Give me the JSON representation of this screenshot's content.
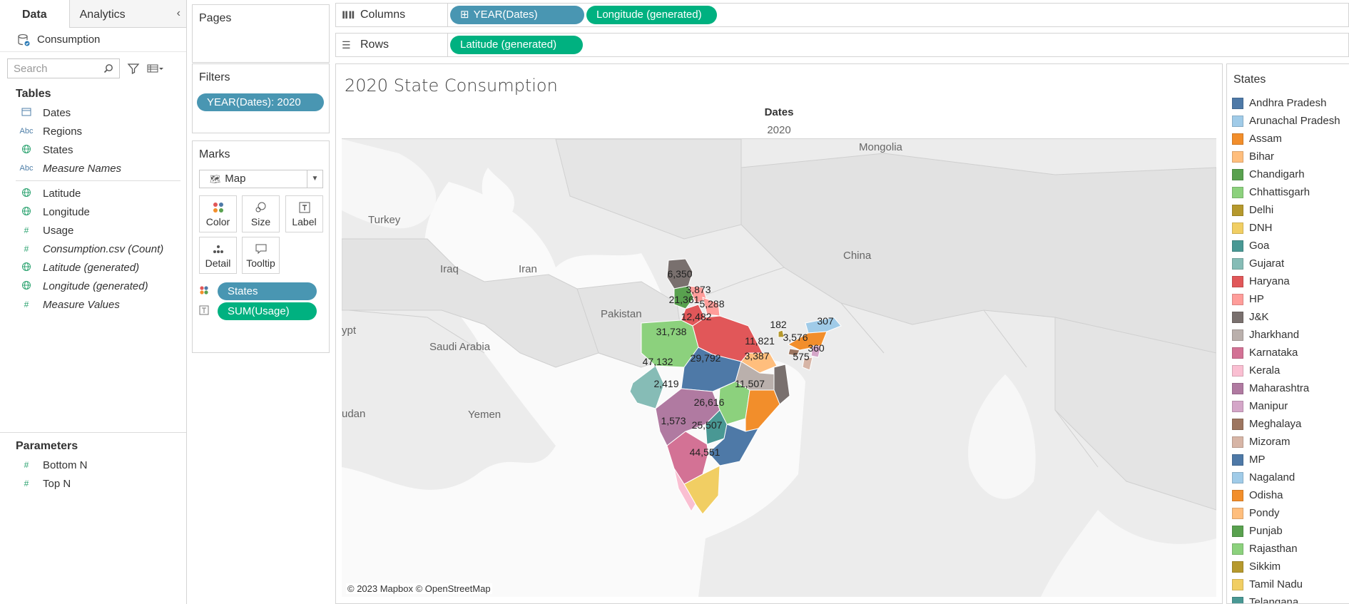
{
  "data_pane": {
    "tabs": [
      "Data",
      "Analytics"
    ],
    "datasource": "Consumption",
    "search_placeholder": "Search",
    "tables_title": "Tables",
    "fields": [
      {
        "label": "Dates",
        "type": "date",
        "italic": false
      },
      {
        "label": "Regions",
        "type": "abc",
        "italic": false
      },
      {
        "label": "States",
        "type": "geo",
        "italic": false
      },
      {
        "label": "Measure Names",
        "type": "abc",
        "italic": true
      },
      {
        "label": "Latitude",
        "type": "geo",
        "italic": false
      },
      {
        "label": "Longitude",
        "type": "geo",
        "italic": false
      },
      {
        "label": "Usage",
        "type": "num",
        "italic": false
      },
      {
        "label": "Consumption.csv (Count)",
        "type": "num",
        "italic": true
      },
      {
        "label": "Latitude (generated)",
        "type": "geo",
        "italic": true
      },
      {
        "label": "Longitude (generated)",
        "type": "geo",
        "italic": true
      },
      {
        "label": "Measure Values",
        "type": "num",
        "italic": true
      }
    ],
    "parameters_title": "Parameters",
    "parameters": [
      "Bottom N",
      "Top N"
    ]
  },
  "pages": {
    "title": "Pages"
  },
  "filters": {
    "title": "Filters",
    "pill": "YEAR(Dates): 2020"
  },
  "marks": {
    "title": "Marks",
    "type": "Map",
    "buttons": [
      "Color",
      "Size",
      "Label",
      "Detail",
      "Tooltip"
    ],
    "pills": [
      {
        "label": "States",
        "color": "blue",
        "kind": "color"
      },
      {
        "label": "SUM(Usage)",
        "color": "green",
        "kind": "label"
      }
    ]
  },
  "columns": {
    "label": "Columns",
    "pills": [
      {
        "label": "YEAR(Dates)",
        "color": "blue"
      },
      {
        "label": "Longitude (generated)",
        "color": "green"
      }
    ]
  },
  "rows": {
    "label": "Rows",
    "pills": [
      {
        "label": "Latitude (generated)",
        "color": "green"
      }
    ]
  },
  "view": {
    "title": "2020 State Consumption",
    "header_field": "Dates",
    "header_value": "2020",
    "credit": "© 2023 Mapbox © OpenStreetMap",
    "map_labels": [
      "Mongolia",
      "Turkey",
      "China",
      "Iraq",
      "Iran",
      "Pakistan",
      "ypt",
      "Saudi Arabia",
      "udan",
      "Yemen"
    ],
    "value_labels": [
      "6,350",
      "3,873",
      "21,361",
      "5,288",
      "12,482",
      "31,738",
      "29,792",
      "47,132",
      "2,419",
      "11,821",
      "182",
      "307",
      "3,576",
      "360",
      "575",
      "3,387",
      "11,507",
      "26,616",
      "1,573",
      "25,507",
      "44,551"
    ]
  },
  "legend": {
    "title": "States",
    "items": [
      {
        "label": "Andhra Pradesh",
        "color": "#4e79a7"
      },
      {
        "label": "Arunachal Pradesh",
        "color": "#a0cbe8"
      },
      {
        "label": "Assam",
        "color": "#f28e2b"
      },
      {
        "label": "Bihar",
        "color": "#ffbe7d"
      },
      {
        "label": "Chandigarh",
        "color": "#59a14f"
      },
      {
        "label": "Chhattisgarh",
        "color": "#8cd17d"
      },
      {
        "label": "Delhi",
        "color": "#b6992d"
      },
      {
        "label": "DNH",
        "color": "#f1ce63"
      },
      {
        "label": "Goa",
        "color": "#499894"
      },
      {
        "label": "Gujarat",
        "color": "#86bcb6"
      },
      {
        "label": "Haryana",
        "color": "#e15759"
      },
      {
        "label": "HP",
        "color": "#ff9d9a"
      },
      {
        "label": "J&K",
        "color": "#79706e"
      },
      {
        "label": "Jharkhand",
        "color": "#bab0ac"
      },
      {
        "label": "Karnataka",
        "color": "#d37295"
      },
      {
        "label": "Kerala",
        "color": "#fabfd2"
      },
      {
        "label": "Maharashtra",
        "color": "#b07aa1"
      },
      {
        "label": "Manipur",
        "color": "#d4a6c8"
      },
      {
        "label": "Meghalaya",
        "color": "#9d7660"
      },
      {
        "label": "Mizoram",
        "color": "#d7b5a6"
      },
      {
        "label": "MP",
        "color": "#4e79a7"
      },
      {
        "label": "Nagaland",
        "color": "#a0cbe8"
      },
      {
        "label": "Odisha",
        "color": "#f28e2b"
      },
      {
        "label": "Pondy",
        "color": "#ffbe7d"
      },
      {
        "label": "Punjab",
        "color": "#59a14f"
      },
      {
        "label": "Rajasthan",
        "color": "#8cd17d"
      },
      {
        "label": "Sikkim",
        "color": "#b6992d"
      },
      {
        "label": "Tamil Nadu",
        "color": "#f1ce63"
      },
      {
        "label": "Telangana",
        "color": "#499894"
      }
    ]
  }
}
